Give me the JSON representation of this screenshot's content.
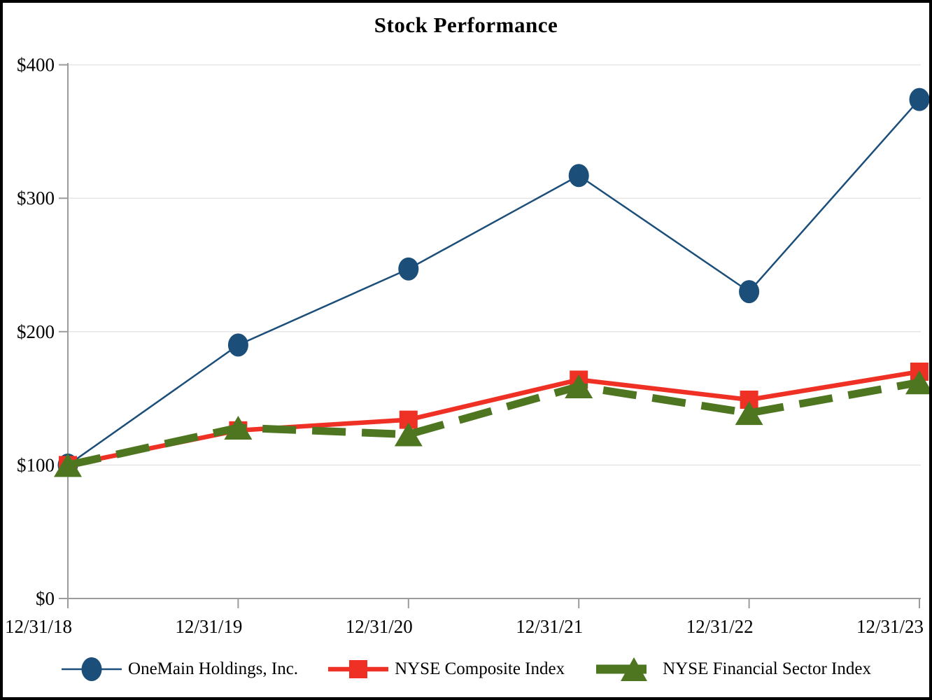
{
  "chart_data": {
    "type": "line",
    "title": "Stock Performance",
    "x_labels": [
      "12/31/18",
      "12/31/19",
      "12/31/20",
      "12/31/21",
      "12/31/22",
      "12/31/23"
    ],
    "y_tick_labels": [
      "$0",
      "$100",
      "$200",
      "$300",
      "$400"
    ],
    "y_tick_values": [
      0,
      100,
      200,
      300,
      400
    ],
    "ylim": [
      0,
      400
    ],
    "grid": "horizontal-light",
    "legend_position": "bottom",
    "axis_color": "#9c9c9c",
    "gridline_color": "#e6e6e6",
    "series": [
      {
        "name": "OneMain Holdings, Inc.",
        "marker": "circle",
        "color": "#1B4E79",
        "line_style": "solid-thin",
        "values": [
          100,
          190,
          247,
          317,
          230,
          374
        ]
      },
      {
        "name": "NYSE Composite Index",
        "marker": "square",
        "color": "#EE3124",
        "line_style": "solid-thick",
        "values": [
          100,
          126,
          134,
          164,
          149,
          170
        ]
      },
      {
        "name": "NYSE Financial Sector Index",
        "marker": "triangle",
        "color": "#4E7620",
        "line_style": "dashed-thick",
        "values": [
          100,
          128,
          123,
          159,
          139,
          162
        ]
      }
    ]
  }
}
